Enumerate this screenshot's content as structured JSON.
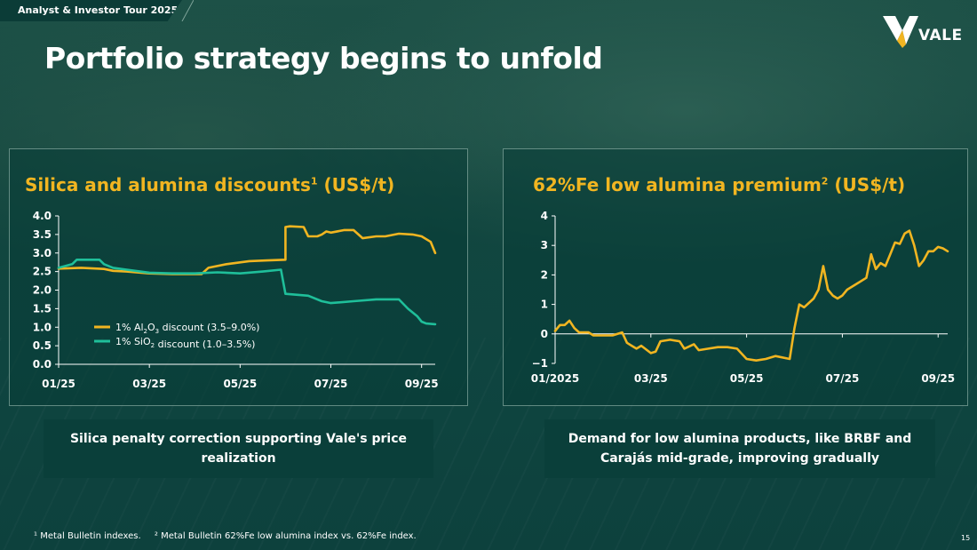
{
  "header": {
    "tour_label": "Analyst & Investor Tour 2025",
    "title": "Portfolio strategy begins to unfold",
    "logo_text": "VALE"
  },
  "colors": {
    "accent": "#f1b521",
    "teal": "#1fbf9a",
    "panel_border": "#aac8be"
  },
  "left_panel": {
    "title": "Silica and alumina discounts",
    "title_sup": "1",
    "title_unit": " (US$/t)",
    "caption": "Silica penalty correction supporting Vale's price realization"
  },
  "right_panel": {
    "title": "62%Fe low alumina premium",
    "title_sup": "2",
    "title_unit": " (US$/t)",
    "caption": "Demand for low alumina products, like BRBF and Carajás mid-grade, improving gradually"
  },
  "footnotes": {
    "note1": "¹ Metal Bulletin indexes.",
    "note2": "² Metal Bulletin 62%Fe low alumina index vs. 62%Fe index."
  },
  "page_number": "15",
  "chart_data": [
    {
      "type": "line",
      "title": "Silica and alumina discounts¹ (US$/t)",
      "x_range": [
        0,
        8.3
      ],
      "ylim": [
        0,
        4
      ],
      "y_ticks": [
        "0.0",
        "0.5",
        "1.0",
        "1.5",
        "2.0",
        "2.5",
        "3.0",
        "3.5",
        "4.0"
      ],
      "y_tick_values": [
        0,
        0.5,
        1,
        1.5,
        2,
        2.5,
        3,
        3.5,
        4
      ],
      "x_ticks": [
        "01/25",
        "03/25",
        "05/25",
        "07/25",
        "09/25"
      ],
      "x_tick_values": [
        0,
        2,
        4,
        6,
        8
      ],
      "legend_position": "inside-bottom-left",
      "series": [
        {
          "name": "1% Al2O3 discount (3.5–9.0%)",
          "legend_main": "1% Al",
          "legend_sub1": "2",
          "legend_mid": "O",
          "legend_sub2": "3",
          "legend_tail": " discount (3.5–9.0%)",
          "color": "#f1b521",
          "x": [
            0,
            0.5,
            1.0,
            1.2,
            1.5,
            2.0,
            2.5,
            3.0,
            3.15,
            3.3,
            3.7,
            4.2,
            4.6,
            5.0,
            5.0,
            5.1,
            5.4,
            5.5,
            5.7,
            5.8,
            5.9,
            6.0,
            6.3,
            6.5,
            6.7,
            7.0,
            7.2,
            7.5,
            7.8,
            8.0,
            8.2,
            8.3
          ],
          "y": [
            2.58,
            2.6,
            2.57,
            2.52,
            2.5,
            2.45,
            2.43,
            2.43,
            2.43,
            2.6,
            2.7,
            2.78,
            2.8,
            2.82,
            3.7,
            3.72,
            3.7,
            3.45,
            3.45,
            3.5,
            3.58,
            3.55,
            3.62,
            3.62,
            3.4,
            3.45,
            3.45,
            3.52,
            3.5,
            3.45,
            3.3,
            3.0
          ]
        },
        {
          "name": "1% SiO2 discount (1.0–3.5%)",
          "legend_main": "1% SiO",
          "legend_sub1": "2",
          "legend_mid": "",
          "legend_sub2": "",
          "legend_tail": " discount (1.0–3.5%)",
          "color": "#1fbf9a",
          "x": [
            0,
            0.3,
            0.4,
            0.5,
            0.9,
            1.0,
            1.2,
            1.5,
            2.0,
            2.5,
            3.0,
            3.5,
            4.0,
            4.5,
            4.9,
            5.0,
            5.5,
            5.8,
            6.0,
            6.5,
            7.0,
            7.5,
            7.7,
            7.9,
            8.0,
            8.1,
            8.3
          ],
          "y": [
            2.6,
            2.7,
            2.82,
            2.82,
            2.82,
            2.7,
            2.6,
            2.55,
            2.47,
            2.45,
            2.45,
            2.48,
            2.45,
            2.5,
            2.55,
            1.9,
            1.85,
            1.7,
            1.65,
            1.7,
            1.75,
            1.75,
            1.5,
            1.3,
            1.15,
            1.1,
            1.08
          ]
        }
      ]
    },
    {
      "type": "line",
      "title": "62%Fe low alumina premium² (US$/t)",
      "x_range": [
        0,
        8.2
      ],
      "ylim": [
        -1,
        4
      ],
      "y_ticks": [
        "4",
        "3",
        "2",
        "1",
        "0",
        "−1"
      ],
      "y_tick_values": [
        4,
        3,
        2,
        1,
        0,
        -1
      ],
      "x_ticks": [
        "01/2025",
        "03/25",
        "05/25",
        "07/25",
        "09/25"
      ],
      "x_tick_values": [
        0,
        2,
        4,
        6,
        8
      ],
      "series": [
        {
          "name": "62%Fe low alumina premium",
          "color": "#f1b521",
          "x": [
            0,
            0.1,
            0.2,
            0.3,
            0.4,
            0.5,
            0.7,
            0.8,
            1.0,
            1.2,
            1.4,
            1.5,
            1.6,
            1.7,
            1.8,
            2.0,
            2.1,
            2.2,
            2.4,
            2.6,
            2.7,
            2.9,
            3.0,
            3.2,
            3.4,
            3.6,
            3.8,
            4.0,
            4.2,
            4.4,
            4.6,
            4.9,
            5.0,
            5.1,
            5.2,
            5.4,
            5.5,
            5.6,
            5.7,
            5.8,
            5.9,
            6.0,
            6.1,
            6.3,
            6.5,
            6.6,
            6.7,
            6.8,
            6.9,
            7.0,
            7.1,
            7.2,
            7.3,
            7.4,
            7.5,
            7.6,
            7.7,
            7.8,
            7.9,
            8.0,
            8.1,
            8.2
          ],
          "y": [
            0.1,
            0.3,
            0.3,
            0.45,
            0.2,
            0.05,
            0.05,
            -0.05,
            -0.05,
            -0.05,
            0.05,
            -0.3,
            -0.4,
            -0.5,
            -0.4,
            -0.65,
            -0.6,
            -0.25,
            -0.2,
            -0.25,
            -0.5,
            -0.35,
            -0.55,
            -0.5,
            -0.45,
            -0.45,
            -0.5,
            -0.85,
            -0.9,
            -0.85,
            -0.75,
            -0.85,
            0.2,
            1.0,
            0.9,
            1.2,
            1.5,
            2.3,
            1.5,
            1.3,
            1.2,
            1.3,
            1.5,
            1.7,
            1.9,
            2.7,
            2.2,
            2.4,
            2.3,
            2.7,
            3.1,
            3.05,
            3.4,
            3.5,
            3.0,
            2.3,
            2.5,
            2.8,
            2.8,
            2.95,
            2.9,
            2.8
          ]
        }
      ]
    }
  ]
}
